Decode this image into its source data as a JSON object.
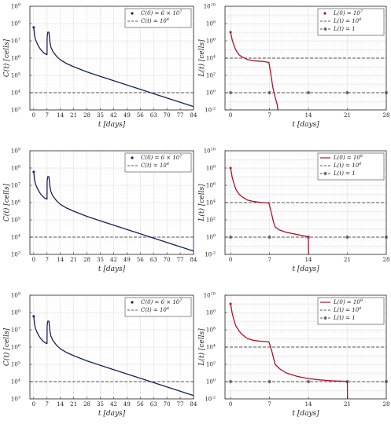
{
  "colors": {
    "C_series": "#1a1f5c",
    "L_series": "#b1122a",
    "threshold": "#555555",
    "grid": "#d9d9d9"
  },
  "chart_data": [
    {
      "type": "line",
      "panel": "C",
      "row": 0,
      "xlabel": "t [days]",
      "ylabel": "C(t) [cells]",
      "xlim": [
        -2,
        84
      ],
      "xticks": [
        0,
        7,
        14,
        21,
        28,
        35,
        42,
        49,
        56,
        63,
        70,
        77,
        84
      ],
      "y_scale": "log",
      "ylim_exp": [
        3,
        9
      ],
      "yticks_exp": [
        3,
        4,
        5,
        6,
        7,
        8,
        9
      ],
      "legend_placement": "top-right",
      "grid": true,
      "series": [
        {
          "name": "C(0) = 6 × 10^7",
          "style": "solid-dot",
          "x": [
            0,
            0.2,
            0.5,
            1,
            2,
            3,
            4,
            5,
            6,
            7,
            7.05,
            7.4,
            8,
            8.4,
            9,
            10,
            12,
            14,
            17,
            21,
            28,
            35,
            42,
            49,
            56,
            63,
            70,
            77,
            84
          ],
          "y_exp": [
            7.78,
            7.6,
            7.3,
            7.05,
            6.8,
            6.6,
            6.45,
            6.33,
            6.25,
            6.2,
            7.2,
            7.5,
            7.5,
            7.0,
            6.65,
            6.4,
            6.1,
            5.9,
            5.7,
            5.5,
            5.2,
            4.94,
            4.69,
            4.44,
            4.19,
            3.94,
            3.69,
            3.44,
            3.19
          ]
        },
        {
          "name": "C(t) = 10^4",
          "style": "dashed",
          "y_exp_const": 4
        }
      ],
      "legend": [
        {
          "label": "C(0) = 6 × 10",
          "sup": "7",
          "marker": "dot"
        },
        {
          "label": "C(t) = 10",
          "sup": "4",
          "marker": "dash"
        }
      ]
    },
    {
      "type": "line",
      "panel": "L",
      "row": 0,
      "xlabel": "t [days]",
      "ylabel": "L(t) [cells]",
      "xlim": [
        -1,
        28
      ],
      "xticks": [
        0,
        7,
        14,
        21,
        28
      ],
      "y_scale": "log",
      "ylim_exp": [
        -2,
        10
      ],
      "yticks_exp": [
        -2,
        0,
        2,
        4,
        6,
        8,
        10
      ],
      "legend_placement": "top-right",
      "grid": true,
      "series": [
        {
          "name": "L(0) = 10^7",
          "style": "solid-dot",
          "x": [
            0,
            0.3,
            0.7,
            1,
            1.5,
            2,
            3,
            4,
            5,
            6,
            6.9,
            7.3,
            7.6,
            8,
            8.4,
            8.5
          ],
          "y_exp": [
            7,
            6.1,
            5.3,
            4.9,
            4.4,
            4.15,
            3.85,
            3.7,
            3.65,
            3.6,
            3.5,
            1.9,
            0.6,
            -0.5,
            -1.4,
            -2
          ]
        },
        {
          "name": "L(t) = 10^4",
          "style": "dashed",
          "y_exp_const": 4
        },
        {
          "name": "L(t) = 1",
          "style": "dash-star",
          "y_exp_const": 0
        }
      ],
      "legend": [
        {
          "label": "L(0) = 10",
          "sup": "7",
          "marker": "dot"
        },
        {
          "label": "L(t) = 10",
          "sup": "4",
          "marker": "dash"
        },
        {
          "label": "L(t) = 1",
          "sup": "",
          "marker": "star"
        }
      ]
    },
    {
      "type": "line",
      "panel": "C",
      "row": 1,
      "xlabel": "t [days]",
      "ylabel": "C(t) [cells]",
      "xlim": [
        -2,
        84
      ],
      "xticks": [
        0,
        7,
        14,
        21,
        28,
        35,
        42,
        49,
        56,
        63,
        70,
        77,
        84
      ],
      "y_scale": "log",
      "ylim_exp": [
        3,
        9
      ],
      "yticks_exp": [
        3,
        4,
        5,
        6,
        7,
        8,
        9
      ],
      "legend_placement": "top-right",
      "grid": true,
      "series": [
        {
          "name": "C(0) = 6 × 10^7",
          "style": "solid-dot",
          "x": [
            0,
            0.2,
            0.5,
            1,
            2,
            3,
            4,
            5,
            6,
            7,
            7.05,
            7.4,
            8,
            8.4,
            9,
            10,
            12,
            14,
            17,
            21,
            28,
            35,
            42,
            49,
            56,
            63,
            70,
            77,
            84
          ],
          "y_exp": [
            7.78,
            7.6,
            7.3,
            7.05,
            6.8,
            6.6,
            6.45,
            6.33,
            6.25,
            6.2,
            7.2,
            7.5,
            7.5,
            7.0,
            6.65,
            6.4,
            6.1,
            5.9,
            5.7,
            5.5,
            5.2,
            4.94,
            4.69,
            4.44,
            4.19,
            3.94,
            3.69,
            3.44,
            3.19
          ]
        },
        {
          "name": "C(t) = 10^4",
          "style": "dashed",
          "y_exp_const": 4
        }
      ],
      "legend": [
        {
          "label": "C(0) = 6 × 10",
          "sup": "7",
          "marker": "dot"
        },
        {
          "label": "C(t) = 10",
          "sup": "4",
          "marker": "dash"
        }
      ]
    },
    {
      "type": "line",
      "panel": "L",
      "row": 1,
      "xlabel": "t [days]",
      "ylabel": "L(t) [cells]",
      "xlim": [
        -1,
        28
      ],
      "xticks": [
        0,
        7,
        14,
        21,
        28
      ],
      "y_scale": "log",
      "ylim_exp": [
        -2,
        10
      ],
      "yticks_exp": [
        -2,
        0,
        2,
        4,
        6,
        8,
        10
      ],
      "legend_placement": "top-right",
      "grid": true,
      "series": [
        {
          "name": "L(0) = 10^8",
          "style": "solid-dot",
          "x": [
            0,
            0.3,
            0.7,
            1,
            1.5,
            2,
            3,
            4,
            5,
            6,
            6.9,
            7.3,
            7.7,
            8,
            8.7,
            10,
            12,
            13.5,
            14,
            14.02
          ],
          "y_exp": [
            8,
            6.9,
            6.0,
            5.5,
            5.0,
            4.7,
            4.3,
            4.15,
            4.05,
            4.0,
            3.95,
            2.9,
            1.8,
            1.2,
            0.85,
            0.55,
            0.3,
            0.1,
            0.05,
            -2
          ]
        },
        {
          "name": "L(t) = 10^4",
          "style": "dashed",
          "y_exp_const": 4
        },
        {
          "name": "L(t) = 1",
          "style": "dash-star",
          "y_exp_const": 0
        }
      ],
      "legend": [
        {
          "label": "L(0) = 10",
          "sup": "8",
          "marker": "line"
        },
        {
          "label": "L(t) = 10",
          "sup": "4",
          "marker": "dash"
        },
        {
          "label": "L(t) = 1",
          "sup": "",
          "marker": "star"
        }
      ]
    },
    {
      "type": "line",
      "panel": "C",
      "row": 2,
      "xlabel": "t [days]",
      "ylabel": "C(t) [cells]",
      "xlim": [
        -2,
        84
      ],
      "xticks": [
        0,
        7,
        14,
        21,
        28,
        35,
        42,
        49,
        56,
        63,
        70,
        77,
        84
      ],
      "y_scale": "log",
      "ylim_exp": [
        3,
        9
      ],
      "yticks_exp": [
        3,
        4,
        5,
        6,
        7,
        8,
        9
      ],
      "legend_placement": "top-right",
      "grid": true,
      "series": [
        {
          "name": "C(0) = 6 × 10^7",
          "style": "solid-dot",
          "x": [
            0,
            0.2,
            0.5,
            1,
            2,
            3,
            4,
            5,
            6,
            7,
            7.05,
            7.4,
            8,
            8.4,
            9,
            10,
            12,
            14,
            17,
            21,
            28,
            35,
            42,
            49,
            56,
            63,
            70,
            77,
            84
          ],
          "y_exp": [
            7.78,
            7.6,
            7.3,
            7.05,
            6.8,
            6.6,
            6.45,
            6.33,
            6.25,
            6.2,
            7.2,
            7.5,
            7.5,
            7.0,
            6.65,
            6.4,
            6.1,
            5.9,
            5.7,
            5.5,
            5.2,
            4.94,
            4.69,
            4.44,
            4.19,
            3.94,
            3.69,
            3.44,
            3.19
          ]
        },
        {
          "name": "C(t) = 10^4",
          "style": "dashed",
          "y_exp_const": 4
        }
      ],
      "legend": [
        {
          "label": "C(0) = 6 × 10",
          "sup": "7",
          "marker": "dot"
        },
        {
          "label": "C(t) = 10",
          "sup": "4",
          "marker": "dash"
        }
      ]
    },
    {
      "type": "line",
      "panel": "L",
      "row": 2,
      "xlabel": "t [days]",
      "ylabel": "L(t) [cells]",
      "xlim": [
        -1,
        28
      ],
      "xticks": [
        0,
        7,
        14,
        21,
        28
      ],
      "y_scale": "log",
      "ylim_exp": [
        -2,
        10
      ],
      "yticks_exp": [
        -2,
        0,
        2,
        4,
        6,
        8,
        10
      ],
      "legend_placement": "top-right",
      "grid": true,
      "series": [
        {
          "name": "L(0) = 10^9",
          "style": "solid-dot",
          "x": [
            0,
            0.3,
            0.7,
            1,
            1.5,
            2,
            3,
            4,
            5,
            6,
            6.9,
            7.3,
            7.7,
            8,
            9,
            10,
            12,
            14,
            16,
            18,
            20,
            21,
            21.02
          ],
          "y_exp": [
            9,
            7.9,
            6.9,
            6.4,
            5.9,
            5.5,
            5.0,
            4.8,
            4.7,
            4.65,
            4.6,
            3.8,
            2.8,
            2.0,
            1.4,
            1.0,
            0.6,
            0.35,
            0.2,
            0.1,
            0.05,
            0.02,
            -2
          ]
        },
        {
          "name": "L(t) = 10^4",
          "style": "dashed",
          "y_exp_const": 4
        },
        {
          "name": "L(t) = 1",
          "style": "dash-star",
          "y_exp_const": 0
        }
      ],
      "legend": [
        {
          "label": "L(0) = 10",
          "sup": "9",
          "marker": "line"
        },
        {
          "label": "L(t) = 10",
          "sup": "4",
          "marker": "dash"
        },
        {
          "label": "L(t) = 1",
          "sup": "",
          "marker": "star"
        }
      ]
    }
  ]
}
